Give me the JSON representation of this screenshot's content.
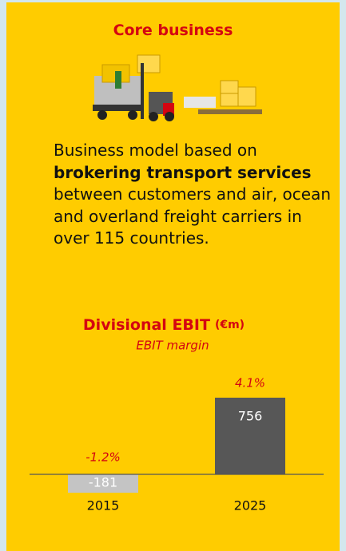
{
  "header": {
    "title": "Core business"
  },
  "description": {
    "lead": "Business model based on",
    "emphasis": "brokering transport services",
    "rest": "between customers and air, ocean and overland freight carriers in over 115 countries."
  },
  "chart_data": {
    "type": "bar",
    "title": "Divisional EBIT",
    "unit": "(€m)",
    "subtitle": "EBIT margin",
    "categories": [
      "2015",
      "2025"
    ],
    "values": [
      -181,
      756
    ],
    "colors": [
      "#c4c4c4",
      "#575757"
    ],
    "annotations": [
      "-1.2%",
      "4.1%"
    ],
    "annotation_color": "#d40511"
  }
}
